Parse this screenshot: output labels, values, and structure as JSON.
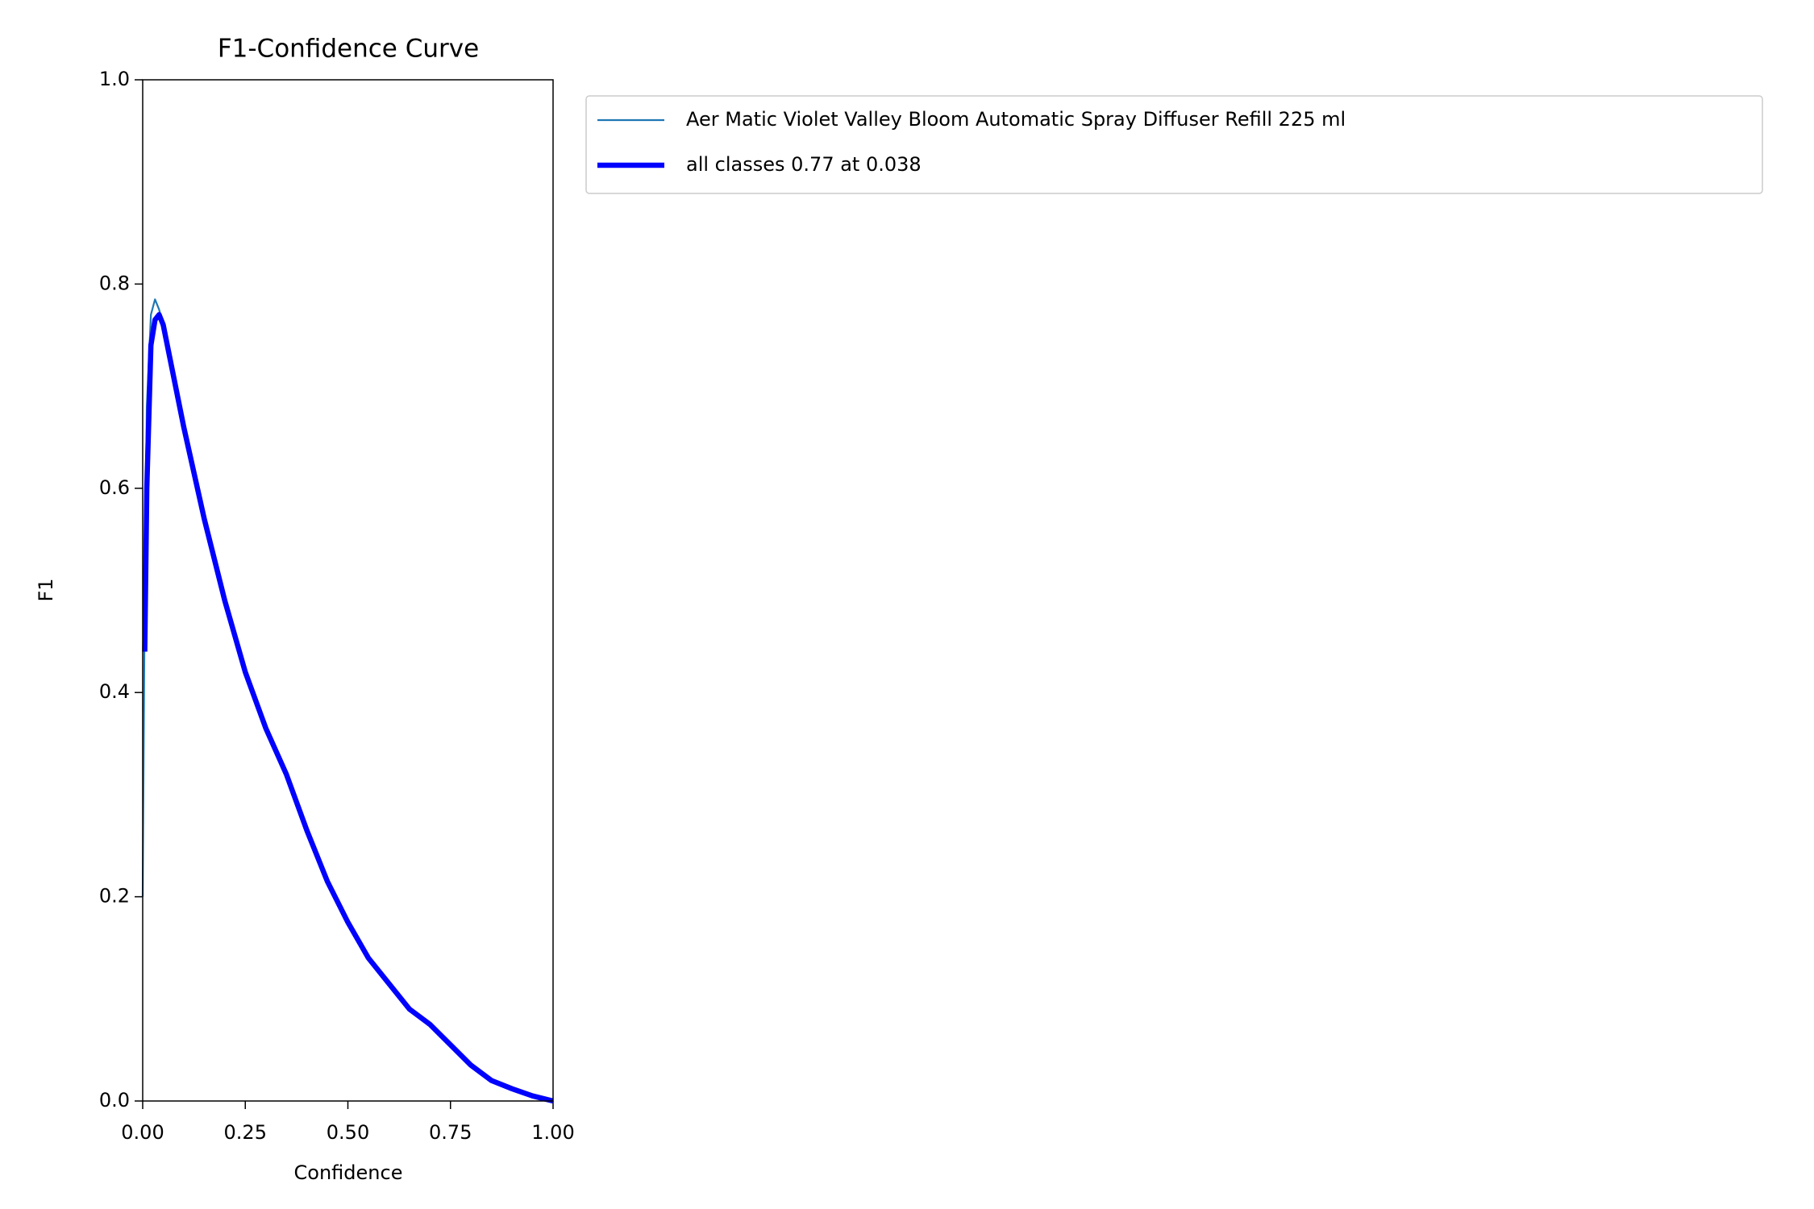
{
  "chart_data": {
    "type": "line",
    "title": "F1-Confidence Curve",
    "x_label": "Confidence",
    "y_label": "F1",
    "x": [
      0,
      0.005,
      0.01,
      0.02,
      0.03,
      0.04,
      0.05,
      0.07,
      0.1,
      0.15,
      0.2,
      0.25,
      0.3,
      0.35,
      0.4,
      0.45,
      0.5,
      0.55,
      0.6,
      0.65,
      0.7,
      0.75,
      0.8,
      0.85,
      0.9,
      0.95,
      1.0
    ],
    "series": [
      {
        "name": "Aer Matic Violet Valley Bloom Automatic Spray Diffuser Refill 225 ml",
        "color": "#1f77b4",
        "linewidth": 2.2,
        "values": [
          0.2,
          0.5,
          0.68,
          0.77,
          0.785,
          0.775,
          0.76,
          0.72,
          0.66,
          0.57,
          0.49,
          0.42,
          0.365,
          0.32,
          0.265,
          0.215,
          0.175,
          0.14,
          0.115,
          0.09,
          0.075,
          0.055,
          0.035,
          0.02,
          0.012,
          0.005,
          0.0
        ]
      },
      {
        "name": "all classes 0.77 at 0.038",
        "color": "#0000ff",
        "linewidth": 6.5,
        "values": [
          null,
          0.44,
          0.6,
          0.74,
          0.765,
          0.77,
          0.76,
          0.72,
          0.66,
          0.57,
          0.49,
          0.42,
          0.365,
          0.32,
          0.265,
          0.215,
          0.175,
          0.14,
          0.115,
          0.09,
          0.075,
          0.055,
          0.035,
          0.02,
          0.012,
          0.005,
          0.0
        ]
      }
    ],
    "xlim": [
      0,
      1
    ],
    "ylim": [
      0,
      1
    ],
    "xticks": [
      {
        "value": 0,
        "label": "0.00"
      },
      0.25,
      {
        "value": 0.5,
        "label": "0.50"
      },
      0.75,
      {
        "value": 1,
        "label": "1.00"
      }
    ],
    "yticks": [
      {
        "value": 0,
        "label": "0.0"
      },
      0.2,
      0.4,
      0.6,
      0.8,
      {
        "value": 1,
        "label": "1.0"
      }
    ]
  }
}
